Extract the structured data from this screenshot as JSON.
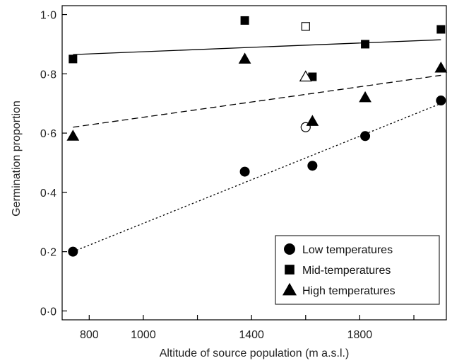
{
  "chart_data": {
    "type": "scatter",
    "title": "",
    "xlabel": "Altitude of source population (m a.s.l.)",
    "ylabel": "Germination proportion",
    "xlim": [
      700,
      2120
    ],
    "ylim": [
      -0.03,
      1.03
    ],
    "x_ticks": [
      800,
      1000,
      1400,
      1800
    ],
    "x_tick_labels": [
      "800",
      "1000",
      "1400",
      "1800"
    ],
    "x_minor_ticks": [
      1200,
      1600,
      2000
    ],
    "y_ticks": [
      0.0,
      0.2,
      0.4,
      0.6,
      0.8,
      1.0
    ],
    "y_tick_labels": [
      "0·0",
      "0·2",
      "0·4",
      "0·6",
      "0·8",
      "1·0"
    ],
    "grid": false,
    "legend_position": "bottom-right",
    "series": [
      {
        "name": "Low temperatures",
        "marker": "circle",
        "color": "#000000",
        "points": [
          [
            740,
            0.2
          ],
          [
            1375,
            0.47
          ],
          [
            1625,
            0.49
          ],
          [
            1820,
            0.59
          ],
          [
            2100,
            0.71
          ]
        ],
        "open_points": [
          [
            1600,
            0.62
          ]
        ],
        "fit": {
          "style": "dotted",
          "x": [
            740,
            2100
          ],
          "y": [
            0.2,
            0.7
          ]
        }
      },
      {
        "name": "Mid-temperatures",
        "marker": "square",
        "color": "#000000",
        "points": [
          [
            740,
            0.85
          ],
          [
            1375,
            0.98
          ],
          [
            1625,
            0.79
          ],
          [
            1820,
            0.9
          ],
          [
            2100,
            0.95
          ]
        ],
        "open_points": [
          [
            1600,
            0.96
          ]
        ],
        "fit": {
          "style": "solid",
          "x": [
            740,
            2100
          ],
          "y": [
            0.865,
            0.915
          ]
        }
      },
      {
        "name": "High temperatures",
        "marker": "triangle",
        "color": "#000000",
        "points": [
          [
            740,
            0.59
          ],
          [
            1375,
            0.85
          ],
          [
            1625,
            0.64
          ],
          [
            1820,
            0.72
          ],
          [
            2100,
            0.82
          ]
        ],
        "open_points": [
          [
            1600,
            0.79
          ]
        ],
        "fit": {
          "style": "dashed",
          "x": [
            740,
            2100
          ],
          "y": [
            0.62,
            0.795
          ]
        }
      }
    ]
  }
}
